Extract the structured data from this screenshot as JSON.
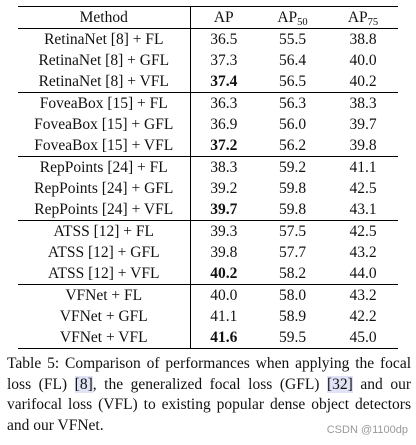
{
  "table": {
    "headers": {
      "method": "Method",
      "ap": "AP",
      "ap50_base": "AP",
      "ap50_sub": "50",
      "ap75_base": "AP",
      "ap75_sub": "75"
    },
    "rows": [
      {
        "method": "RetinaNet [8] + FL",
        "ap": "36.5",
        "ap50": "55.5",
        "ap75": "38.8",
        "bold_ap": false,
        "group_start": true
      },
      {
        "method": "RetinaNet [8] + GFL",
        "ap": "37.3",
        "ap50": "56.4",
        "ap75": "40.0",
        "bold_ap": false
      },
      {
        "method": "RetinaNet [8] + VFL",
        "ap": "37.4",
        "ap50": "56.5",
        "ap75": "40.2",
        "bold_ap": true
      },
      {
        "method": "FoveaBox [15] + FL",
        "ap": "36.3",
        "ap50": "56.3",
        "ap75": "38.3",
        "bold_ap": false,
        "group_start": true
      },
      {
        "method": "FoveaBox [15] + GFL",
        "ap": "36.9",
        "ap50": "56.0",
        "ap75": "39.7",
        "bold_ap": false
      },
      {
        "method": "FoveaBox [15] + VFL",
        "ap": "37.2",
        "ap50": "56.2",
        "ap75": "39.8",
        "bold_ap": true
      },
      {
        "method": "RepPoints [24] + FL",
        "ap": "38.3",
        "ap50": "59.2",
        "ap75": "41.1",
        "bold_ap": false,
        "group_start": true
      },
      {
        "method": "RepPoints [24] + GFL",
        "ap": "39.2",
        "ap50": "59.8",
        "ap75": "42.5",
        "bold_ap": false
      },
      {
        "method": "RepPoints [24] + VFL",
        "ap": "39.7",
        "ap50": "59.8",
        "ap75": "43.1",
        "bold_ap": true
      },
      {
        "method": "ATSS [12] + FL",
        "ap": "39.3",
        "ap50": "57.5",
        "ap75": "42.5",
        "bold_ap": false,
        "group_start": true
      },
      {
        "method": "ATSS [12] + GFL",
        "ap": "39.8",
        "ap50": "57.7",
        "ap75": "43.2",
        "bold_ap": false
      },
      {
        "method": "ATSS [12] + VFL",
        "ap": "40.2",
        "ap50": "58.2",
        "ap75": "44.0",
        "bold_ap": true
      },
      {
        "method": "VFNet + FL",
        "ap": "40.0",
        "ap50": "58.0",
        "ap75": "43.2",
        "bold_ap": false,
        "group_start": true
      },
      {
        "method": "VFNet + GFL",
        "ap": "41.1",
        "ap50": "58.9",
        "ap75": "42.2",
        "bold_ap": false
      },
      {
        "method": "VFNet + VFL",
        "ap": "41.6",
        "ap50": "59.5",
        "ap75": "45.0",
        "bold_ap": true
      }
    ]
  },
  "caption": {
    "part1": "Table 5: Comparison of performances when applying the focal loss (FL) ",
    "ref1": "[8]",
    "part2": ", the generalized focal loss (GFL) ",
    "ref2": "[32]",
    "part3": " and our varifocal loss (VFL) to existing popular dense object detectors and our VFNet."
  },
  "watermark": "CSDN @1100dp",
  "colors": {
    "ref_highlight": "#dfe3f5",
    "text": "#111111",
    "watermark": "#999999"
  }
}
